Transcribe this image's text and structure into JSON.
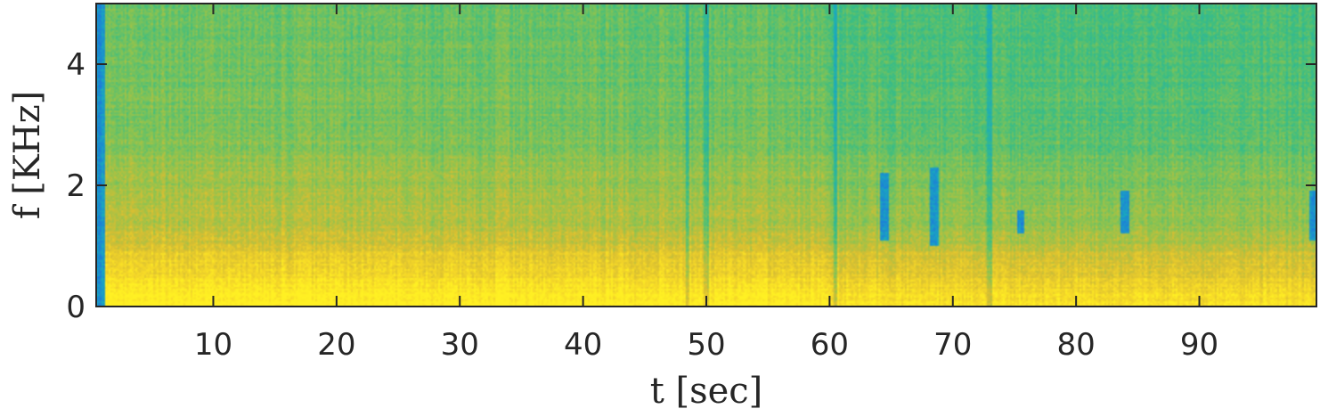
{
  "chart_data": {
    "type": "heatmap",
    "title": "",
    "xlabel": "t [sec]",
    "ylabel": "f [KHz]",
    "xlim": [
      0.5,
      99.5
    ],
    "ylim": [
      0,
      5
    ],
    "xticks": [
      10,
      20,
      30,
      40,
      50,
      60,
      70,
      80,
      90
    ],
    "xtick_labels": [
      "10",
      "20",
      "30",
      "40",
      "50",
      "60",
      "70",
      "80",
      "90"
    ],
    "yticks": [
      0,
      2,
      4
    ],
    "ytick_labels": [
      "0",
      "2",
      "4"
    ],
    "colormap": "parula",
    "colorbar": false,
    "grid": false,
    "colors": {
      "low": "#1e78e0",
      "mid_low": "#1fb3a5",
      "mid": "#4cc477",
      "mid_high": "#c8bd35",
      "high": "#ffea2a"
    },
    "spectral_features": {
      "energy_concentration_khz": [
        0,
        0.9
      ],
      "harmonic_band_khz": [
        0.9,
        2.5
      ],
      "broadband_transients_sec": [
        48.5,
        50,
        60.5,
        73
      ],
      "low_energy_transients": [
        {
          "t": 64.5,
          "f_khz": [
            1.1,
            2.2
          ]
        },
        {
          "t": 68.5,
          "f_khz": [
            1.0,
            2.3
          ]
        },
        {
          "t": 75.5,
          "f_khz": [
            1.2,
            1.6
          ]
        },
        {
          "t": 84,
          "f_khz": [
            1.2,
            1.9
          ]
        },
        {
          "t": 99.3,
          "f_khz": [
            1.1,
            1.9
          ]
        }
      ]
    }
  }
}
